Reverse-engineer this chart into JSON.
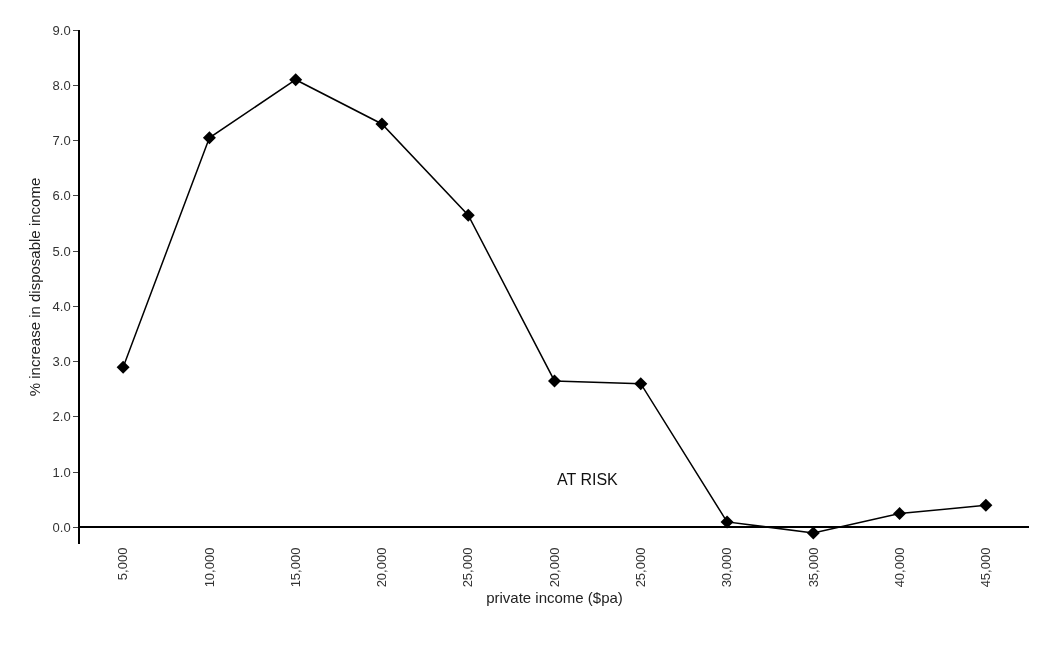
{
  "chart_data": {
    "type": "line",
    "xlabel": "private income ($pa)",
    "ylabel": "% increase in disposable income",
    "categories": [
      "5,000",
      "10,000",
      "15,000",
      "20,000",
      "25,000",
      "20,000",
      "25,000",
      "30,000",
      "35,000",
      "40,000",
      "45,000"
    ],
    "series": [
      {
        "color": "#000000",
        "values": [
          2.9,
          7.05,
          8.1,
          7.3,
          5.65,
          2.65,
          2.6,
          0.1,
          -0.1,
          0.25,
          0.4
        ]
      }
    ],
    "ylim": [
      -0.3,
      9.0
    ],
    "yticks": [
      {
        "value": 0,
        "label": "0.0"
      },
      {
        "value": 1,
        "label": "1.0"
      },
      {
        "value": 2,
        "label": "2.0"
      },
      {
        "value": 3,
        "label": "3.0"
      },
      {
        "value": 4,
        "label": "4.0"
      },
      {
        "value": 5,
        "label": "5.0"
      },
      {
        "value": 6,
        "label": "6.0"
      },
      {
        "value": 7,
        "label": "7.0"
      },
      {
        "value": 8,
        "label": "8.0"
      },
      {
        "value": 9,
        "label": "9.0"
      }
    ],
    "annotations": [
      "AT RISK"
    ],
    "marker": "diamond",
    "line_style": "solid"
  }
}
